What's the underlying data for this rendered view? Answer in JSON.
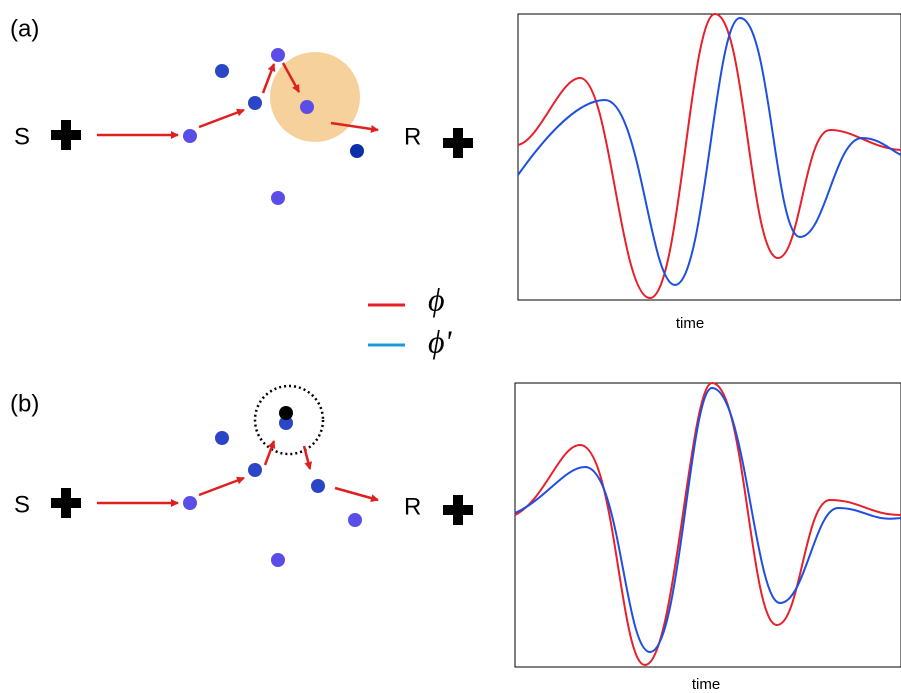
{
  "panels": [
    {
      "label": "(a)",
      "source": "S",
      "receiver": "R",
      "x_axis_label": "time"
    },
    {
      "label": "(b)",
      "source": "S",
      "receiver": "R",
      "x_axis_label": "time"
    }
  ],
  "legend": [
    {
      "symbol": "ϕ"
    },
    {
      "symbol": "ϕ'"
    }
  ]
}
